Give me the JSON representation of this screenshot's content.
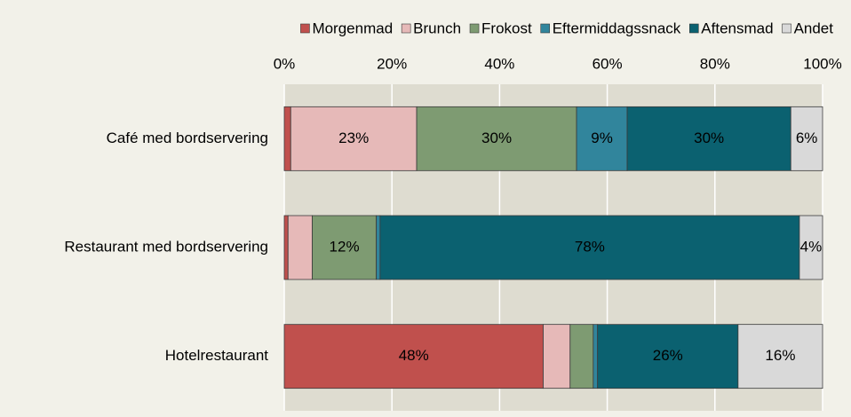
{
  "chart_data": {
    "type": "stacked-barh",
    "categories": [
      "Café med bordservering",
      "Restaurant med bordservering",
      "Hotelrestaurant"
    ],
    "series": [
      {
        "name": "Morgenmad",
        "color": "#c0504d",
        "values": [
          1.2,
          0.7,
          48.1
        ],
        "value_labels": [
          null,
          null,
          "48%"
        ]
      },
      {
        "name": "Brunch",
        "color": "#e6b9b8",
        "values": [
          23.4,
          4.5,
          5.0
        ],
        "value_labels": [
          "23%",
          null,
          null
        ]
      },
      {
        "name": "Frokost",
        "color": "#7e9b72",
        "values": [
          29.7,
          11.9,
          4.3
        ],
        "value_labels": [
          "30%",
          "12%",
          null
        ]
      },
      {
        "name": "Eftermiddagssnack",
        "color": "#31859c",
        "values": [
          9.4,
          0.7,
          0.8
        ],
        "value_labels": [
          "9%",
          null,
          null
        ]
      },
      {
        "name": "Aftensmad",
        "color": "#0b6170",
        "values": [
          30.4,
          77.9,
          26.1
        ],
        "value_labels": [
          "30%",
          "78%",
          "26%"
        ]
      },
      {
        "name": "Andet",
        "color": "#d9d9d9",
        "values": [
          5.9,
          4.3,
          15.7
        ],
        "value_labels": [
          "6%",
          "4%",
          "16%"
        ]
      }
    ],
    "xlim": [
      0,
      100
    ],
    "xticks": [
      {
        "value": 0,
        "label": "0%"
      },
      {
        "value": 20,
        "label": "20%"
      },
      {
        "value": 40,
        "label": "40%"
      },
      {
        "value": 60,
        "label": "60%"
      },
      {
        "value": 80,
        "label": "80%"
      },
      {
        "value": 100,
        "label": "100%"
      }
    ],
    "grid": true,
    "legend": "top"
  }
}
